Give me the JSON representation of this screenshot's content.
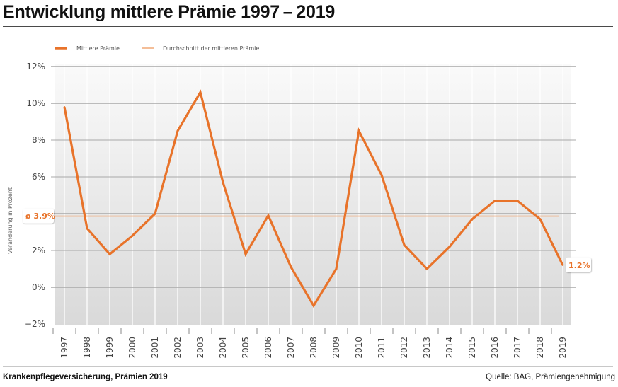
{
  "header": {
    "title": "Entwicklung mittlere Prämie 1997 – 2019"
  },
  "footer": {
    "left": "Krankenpflegeversicherung, Prämien 2019",
    "right": "Quelle: BAG, Prämiengenehmigung"
  },
  "colors": {
    "series": "#e8732a",
    "average": "#f0a877",
    "grid": "#a8a8a8",
    "plot_bg_top": "#fafafa",
    "plot_bg_bottom": "#d9d9d9"
  },
  "chart_data": {
    "type": "line",
    "title": "Entwicklung mittlere Prämie 1997–2019",
    "xlabel": "",
    "ylabel": "Veränderung in Prozent",
    "ylim": [
      -2,
      12
    ],
    "yticks": [
      -2,
      0,
      2,
      4,
      6,
      8,
      10,
      12
    ],
    "ytick_labels": [
      "−2%",
      "0%",
      "2%",
      "",
      "6%",
      "8%",
      "10%",
      "12%"
    ],
    "grid": true,
    "legend_position": "top-left",
    "categories": [
      "1997",
      "1998",
      "1999",
      "2000",
      "2001",
      "2002",
      "2003",
      "2004",
      "2005",
      "2006",
      "2007",
      "2008",
      "2009",
      "2010",
      "2011",
      "2012",
      "2013",
      "2014",
      "2015",
      "2016",
      "2017",
      "2018",
      "2019"
    ],
    "series": [
      {
        "name": "Mittlere Prämie",
        "values": [
          9.8,
          3.2,
          1.8,
          2.8,
          4.0,
          8.5,
          10.6,
          5.7,
          1.8,
          3.9,
          1.1,
          -1.0,
          1.0,
          8.5,
          6.1,
          2.3,
          1.0,
          2.2,
          3.7,
          4.7,
          4.7,
          3.7,
          1.2
        ]
      },
      {
        "name": "Durchschnitt der mittleren Prämie",
        "value": 3.9
      }
    ],
    "annotations": [
      {
        "text": "ø 3.9%",
        "target": "average"
      },
      {
        "text": "1.2%",
        "target": "2019"
      }
    ]
  }
}
